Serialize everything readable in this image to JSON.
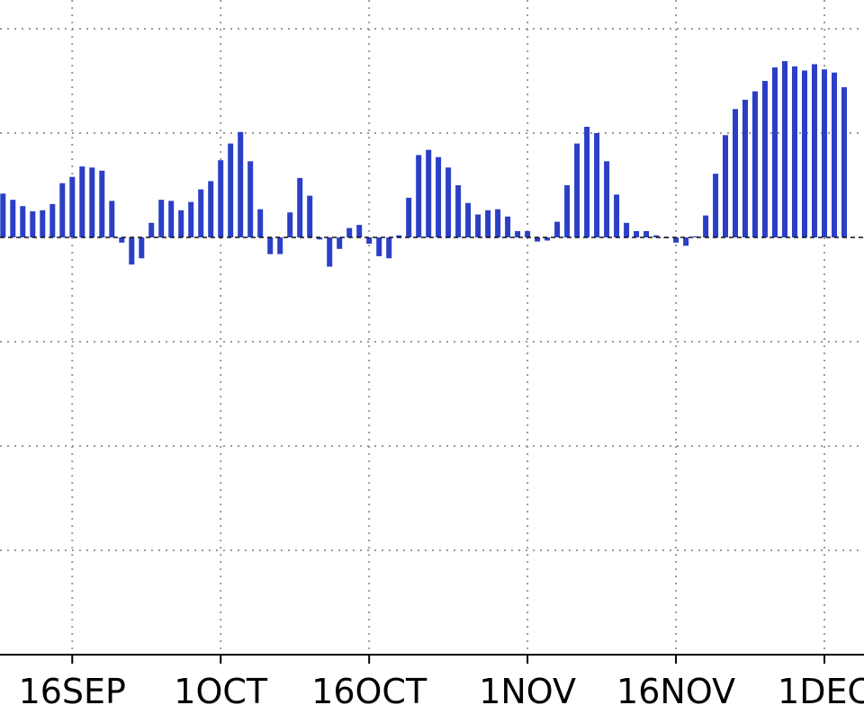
{
  "chart_data": {
    "type": "bar",
    "x_tick_labels": [
      "16SEP",
      "1OCT",
      "16OCT",
      "1NOV",
      "16NOV",
      "1DEC"
    ],
    "x_tick_days": [
      16,
      31,
      46,
      62,
      77,
      92
    ],
    "x_range_days": [
      8.7,
      96
    ],
    "grid": true,
    "bar_color": "#2b3fc6",
    "bars": [
      {
        "day": 9,
        "value": 0.42
      },
      {
        "day": 10,
        "value": 0.36
      },
      {
        "day": 11,
        "value": 0.3
      },
      {
        "day": 12,
        "value": 0.25
      },
      {
        "day": 13,
        "value": 0.26
      },
      {
        "day": 14,
        "value": 0.32
      },
      {
        "day": 15,
        "value": 0.52
      },
      {
        "day": 16,
        "value": 0.58
      },
      {
        "day": 17,
        "value": 0.68
      },
      {
        "day": 18,
        "value": 0.67
      },
      {
        "day": 19,
        "value": 0.64
      },
      {
        "day": 20,
        "value": 0.35
      },
      {
        "day": 21,
        "value": -0.05
      },
      {
        "day": 22,
        "value": -0.26
      },
      {
        "day": 23,
        "value": -0.2
      },
      {
        "day": 24,
        "value": 0.14
      },
      {
        "day": 25,
        "value": 0.36
      },
      {
        "day": 26,
        "value": 0.35
      },
      {
        "day": 27,
        "value": 0.26
      },
      {
        "day": 28,
        "value": 0.34
      },
      {
        "day": 29,
        "value": 0.46
      },
      {
        "day": 30,
        "value": 0.54
      },
      {
        "day": 31,
        "value": 0.74
      },
      {
        "day": 32,
        "value": 0.9
      },
      {
        "day": 33,
        "value": 1.01
      },
      {
        "day": 34,
        "value": 0.73
      },
      {
        "day": 35,
        "value": 0.27
      },
      {
        "day": 36,
        "value": -0.16
      },
      {
        "day": 37,
        "value": -0.16
      },
      {
        "day": 38,
        "value": 0.24
      },
      {
        "day": 39,
        "value": 0.57
      },
      {
        "day": 40,
        "value": 0.4
      },
      {
        "day": 41,
        "value": -0.02
      },
      {
        "day": 42,
        "value": -0.28
      },
      {
        "day": 43,
        "value": -0.11
      },
      {
        "day": 44,
        "value": 0.09
      },
      {
        "day": 45,
        "value": 0.12
      },
      {
        "day": 46,
        "value": -0.06
      },
      {
        "day": 47,
        "value": -0.18
      },
      {
        "day": 48,
        "value": -0.2
      },
      {
        "day": 49,
        "value": 0.02
      },
      {
        "day": 50,
        "value": 0.38
      },
      {
        "day": 51,
        "value": 0.79
      },
      {
        "day": 52,
        "value": 0.84
      },
      {
        "day": 53,
        "value": 0.77
      },
      {
        "day": 54,
        "value": 0.67
      },
      {
        "day": 55,
        "value": 0.5
      },
      {
        "day": 56,
        "value": 0.33
      },
      {
        "day": 57,
        "value": 0.22
      },
      {
        "day": 58,
        "value": 0.26
      },
      {
        "day": 59,
        "value": 0.27
      },
      {
        "day": 60,
        "value": 0.2
      },
      {
        "day": 61,
        "value": 0.06
      },
      {
        "day": 62,
        "value": 0.06
      },
      {
        "day": 63,
        "value": -0.04
      },
      {
        "day": 64,
        "value": -0.03
      },
      {
        "day": 65,
        "value": 0.15
      },
      {
        "day": 66,
        "value": 0.5
      },
      {
        "day": 67,
        "value": 0.9
      },
      {
        "day": 68,
        "value": 1.06
      },
      {
        "day": 69,
        "value": 1.0
      },
      {
        "day": 70,
        "value": 0.73
      },
      {
        "day": 71,
        "value": 0.41
      },
      {
        "day": 72,
        "value": 0.14
      },
      {
        "day": 73,
        "value": 0.06
      },
      {
        "day": 74,
        "value": 0.06
      },
      {
        "day": 75,
        "value": 0.02
      },
      {
        "day": 76,
        "value": 0.0
      },
      {
        "day": 77,
        "value": -0.05
      },
      {
        "day": 78,
        "value": -0.08
      },
      {
        "day": 79,
        "value": 0.01
      },
      {
        "day": 80,
        "value": 0.21
      },
      {
        "day": 81,
        "value": 0.61
      },
      {
        "day": 82,
        "value": 0.98
      },
      {
        "day": 83,
        "value": 1.23
      },
      {
        "day": 84,
        "value": 1.32
      },
      {
        "day": 85,
        "value": 1.4
      },
      {
        "day": 86,
        "value": 1.5
      },
      {
        "day": 87,
        "value": 1.63
      },
      {
        "day": 88,
        "value": 1.69
      },
      {
        "day": 89,
        "value": 1.64
      },
      {
        "day": 90,
        "value": 1.6
      },
      {
        "day": 91,
        "value": 1.66
      },
      {
        "day": 92,
        "value": 1.61
      },
      {
        "day": 93,
        "value": 1.58
      },
      {
        "day": 94,
        "value": 1.44
      }
    ]
  }
}
